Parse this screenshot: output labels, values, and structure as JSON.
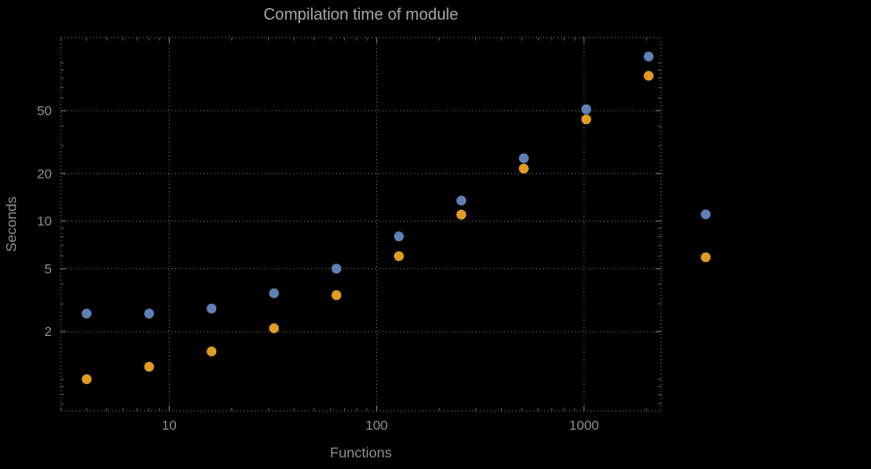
{
  "chart_data": {
    "type": "scatter",
    "title": "Compilation time of module",
    "xlabel": "Functions",
    "ylabel": "Seconds",
    "x_scale": "log",
    "y_scale": "log",
    "x_ticks": [
      10,
      100,
      1000
    ],
    "y_ticks": [
      2,
      5,
      10,
      20,
      50
    ],
    "x_range": [
      3.0,
      2350
    ],
    "y_range": [
      0.63,
      145
    ],
    "grid": "dotted",
    "x": [
      4,
      8,
      16,
      32,
      64,
      128,
      256,
      512,
      1024,
      2048
    ],
    "series": [
      {
        "color": "#5e81b5",
        "marker": "circle",
        "values": [
          2.6,
          2.6,
          2.8,
          3.5,
          5.0,
          8.0,
          13.5,
          25,
          51,
          110
        ]
      },
      {
        "color": "#e19c24",
        "marker": "circle",
        "values": [
          1.0,
          1.2,
          1.5,
          2.1,
          3.4,
          6.0,
          11,
          21.5,
          44,
          83
        ]
      }
    ],
    "legend": {
      "position": "right-outside",
      "marker_colors": [
        "#5e81b5",
        "#e19c24"
      ],
      "labels": [
        "",
        ""
      ]
    }
  },
  "style": {
    "background": "#000000",
    "grid_color": "#6e6e6e",
    "frame_color": "#7a7a7a",
    "tick_label_color": "#8f8f8f",
    "title_color": "#a8a8a8",
    "axis_label_color": "#8f8f8f",
    "point_radius": 5.5
  }
}
